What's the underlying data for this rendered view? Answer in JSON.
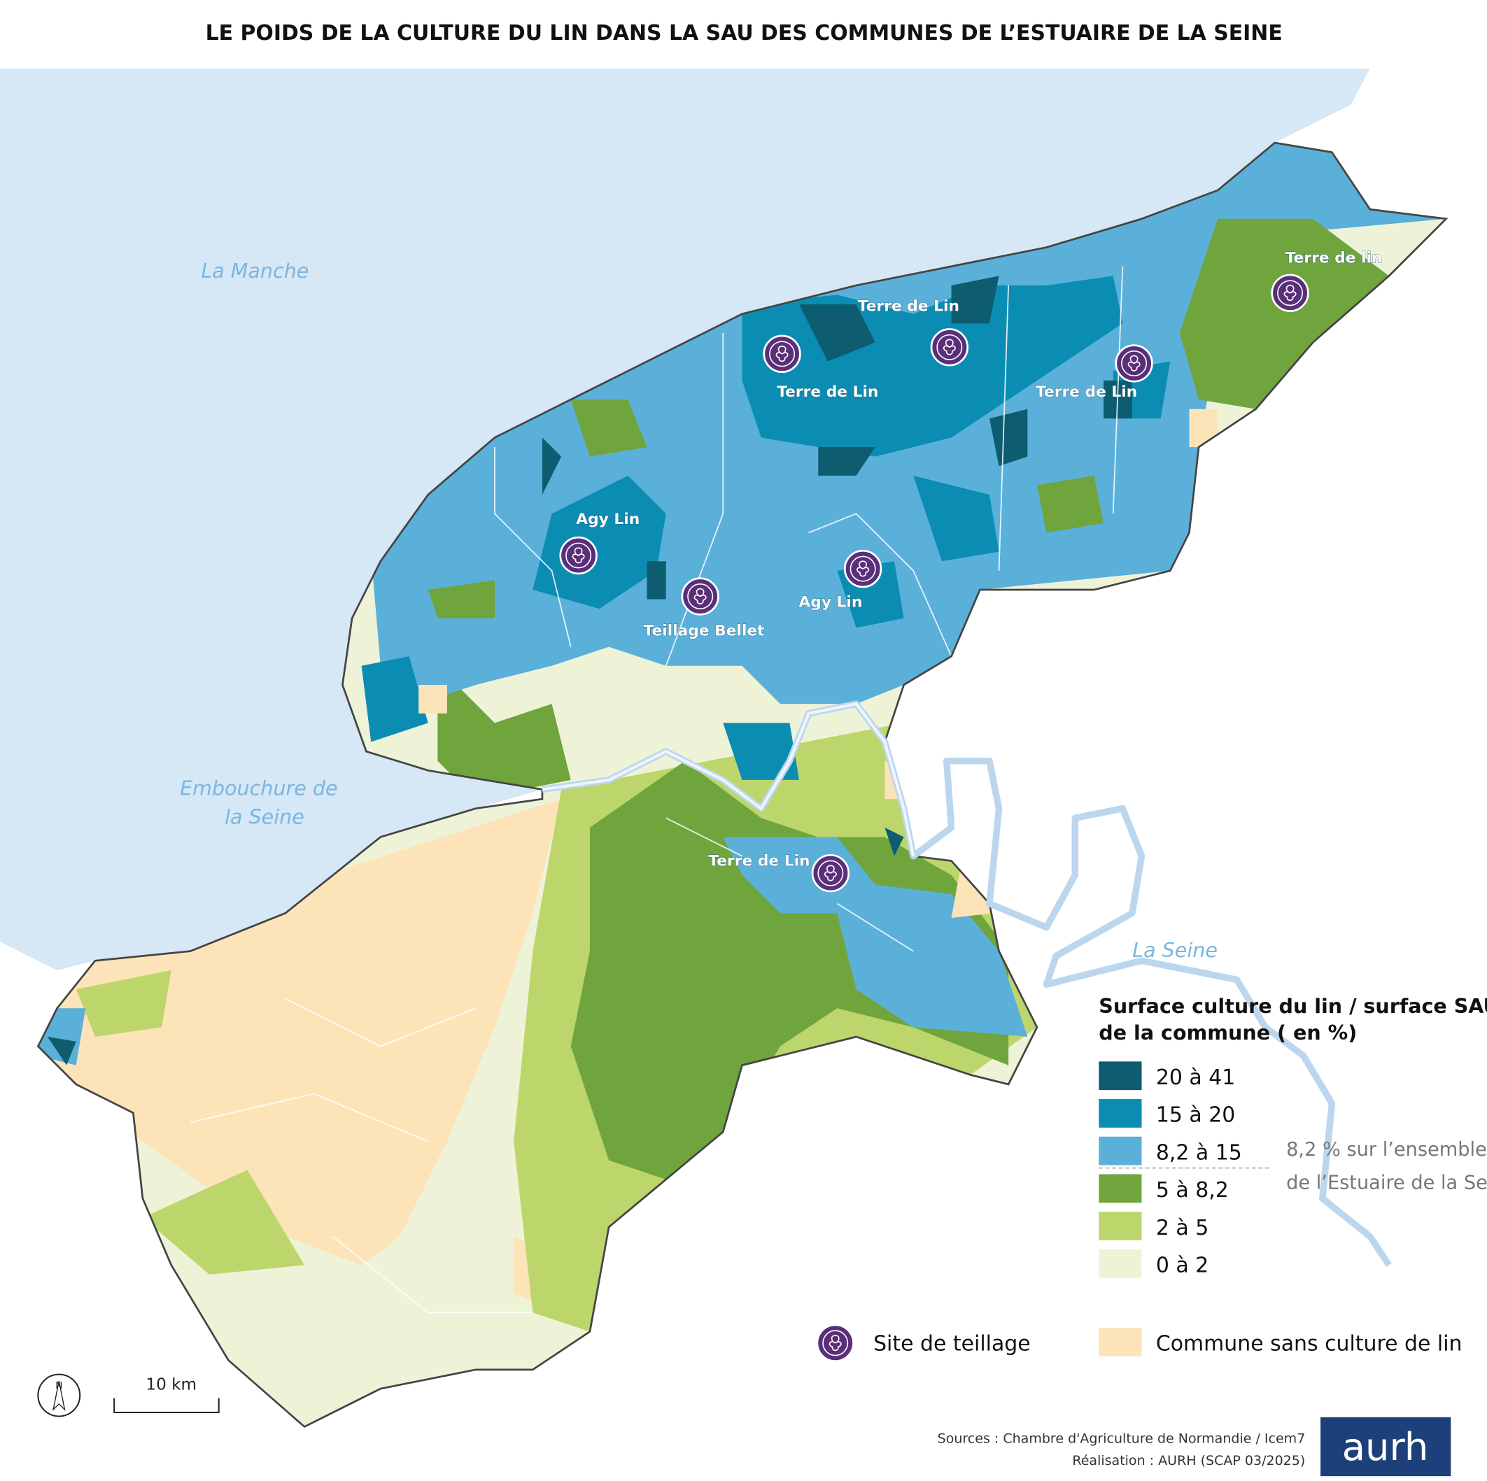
{
  "title": "LE POIDS DE LA CULTURE DU LIN DANS LA SAU DES COMMUNES DE L’ESTUAIRE DE LA SEINE",
  "sea_labels": [
    "La  Manche",
    "Embouchure de",
    "la Seine",
    "La Seine"
  ],
  "sites": [
    "Terre de Lin",
    "Terre de Lin",
    "Terre de Lin",
    "Terre de lin",
    "Agy Lin",
    "Teillage Bellet",
    "Agy Lin",
    "Terre de Lin"
  ],
  "legend": {
    "title": [
      "Surface culture du lin / surface SAU",
      "de la commune  ( en %)"
    ],
    "classes": [
      {
        "label": "20 à 41",
        "color": "#0d5c70"
      },
      {
        "label": "15 à 20",
        "color": "#0b8db3"
      },
      {
        "label": "8,2  à 15",
        "color": "#5bb0da"
      },
      {
        "label": "5 à 8,2",
        "color": "#6fa53c"
      },
      {
        "label": "2 à 5",
        "color": "#bdd66c"
      },
      {
        "label": "0 à 2",
        "color": "#eef3d8"
      }
    ],
    "note": [
      "8,2 % sur l’ensemble",
      "de l’Estuaire de la Seine"
    ],
    "site_label": "Site de teillage",
    "no_culture": {
      "label": "Commune sans culture de lin",
      "color": "#fde3b8"
    }
  },
  "scale": "10 km",
  "north": "N",
  "sources": [
    "Sources : Chambre d'Agriculture de Normandie / Icem7",
    "Réalisation : AURH (SCAP 03/2025)"
  ],
  "logo": "aurh"
}
